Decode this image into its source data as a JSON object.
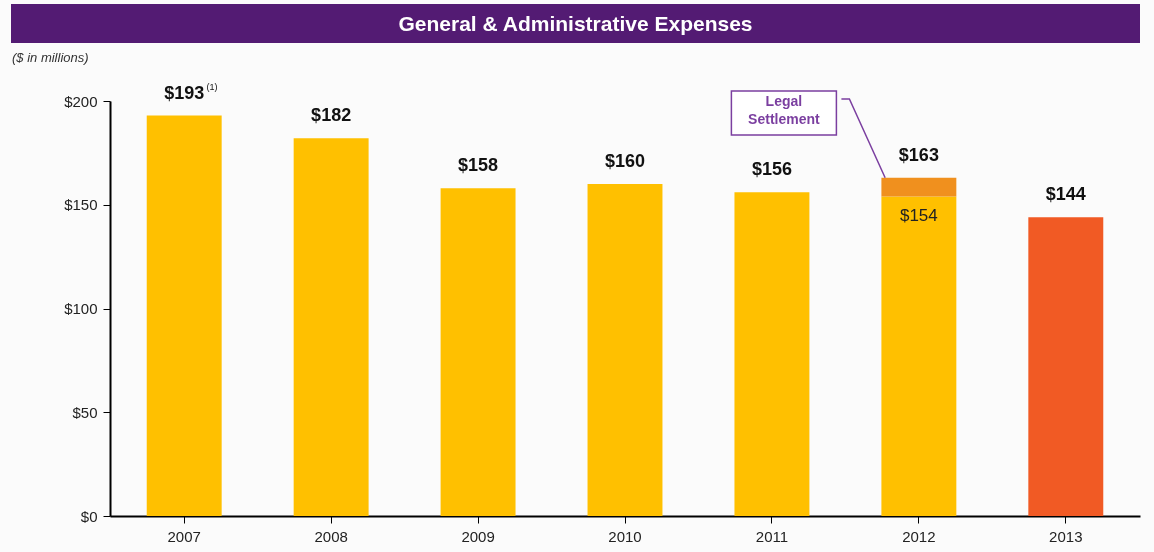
{
  "chart_data": {
    "type": "bar",
    "title": "General & Administrative Expenses",
    "subtitle": "($ in millions)",
    "categories": [
      "2007",
      "2008",
      "2009",
      "2010",
      "2011",
      "2012",
      "2013"
    ],
    "stacked": true,
    "grid": false,
    "ylim": [
      0,
      200
    ],
    "yticks": [
      {
        "value": 0,
        "label": "$0"
      },
      {
        "value": 50,
        "label": "$50"
      },
      {
        "value": 100,
        "label": "$100"
      },
      {
        "value": 150,
        "label": "$150"
      },
      {
        "value": 200,
        "label": "$200"
      }
    ],
    "series": [
      {
        "values": [
          193,
          182,
          158,
          160,
          156,
          154,
          144
        ],
        "colors": [
          "#ffc000",
          "#ffc000",
          "#ffc000",
          "#ffc000",
          "#ffc000",
          "#ffc000",
          "#f15a24"
        ],
        "value_labels": [
          null,
          null,
          null,
          null,
          null,
          "$154",
          null
        ]
      },
      {
        "name": "Legal Settlement",
        "color": "#f0901e",
        "values": [
          null,
          null,
          null,
          null,
          null,
          9,
          null
        ]
      }
    ],
    "totals": [
      "$193$^{(1)}$",
      "$182",
      "$158",
      "$160",
      "$156",
      "$163",
      "$144"
    ]
  }
}
